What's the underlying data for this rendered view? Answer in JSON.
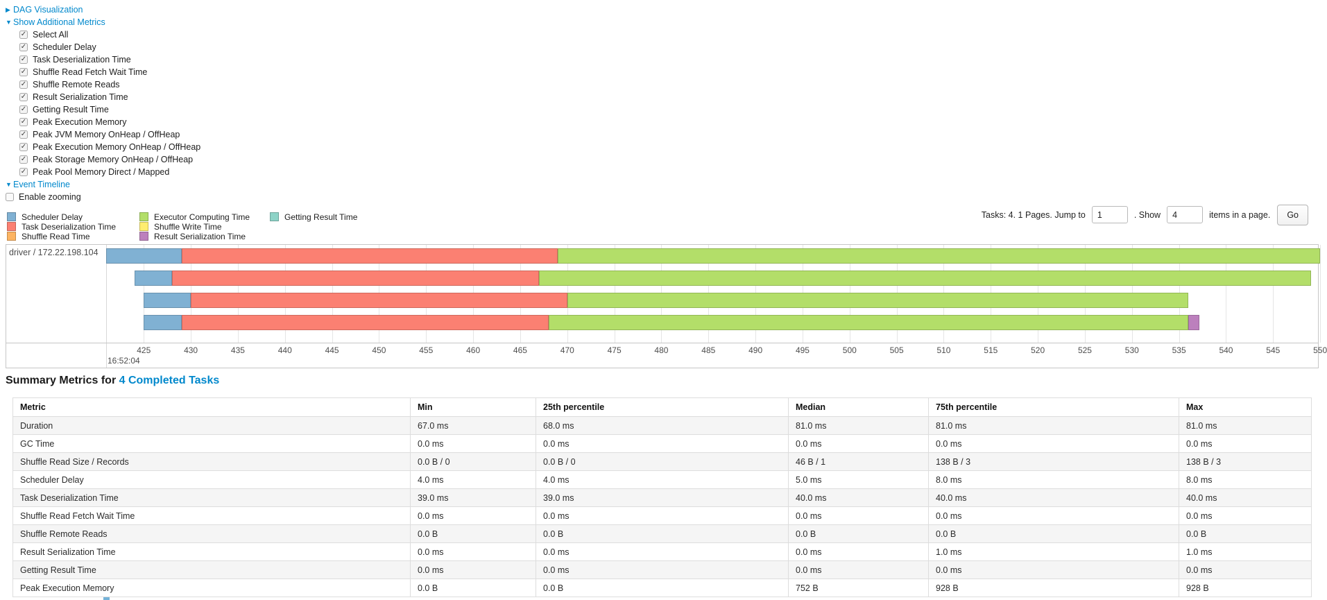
{
  "colors": {
    "link_blue": "#0088cc",
    "scheduler_delay": "#80B1D3",
    "task_deserialization": "#FB8072",
    "shuffle_read": "#FDB462",
    "executor_computing": "#B3DE69",
    "shuffle_write": "#FFED6F",
    "result_serialization": "#BC80BD",
    "getting_result": "#8DD3C7"
  },
  "toggles": {
    "dag": {
      "label": "DAG Visualization",
      "state": "collapsed"
    },
    "metrics": {
      "label": "Show Additional Metrics",
      "state": "expanded"
    },
    "checkboxes": [
      {
        "label": "Select All",
        "checked": true
      },
      {
        "label": "Scheduler Delay",
        "checked": true
      },
      {
        "label": "Task Deserialization Time",
        "checked": true
      },
      {
        "label": "Shuffle Read Fetch Wait Time",
        "checked": true
      },
      {
        "label": "Shuffle Remote Reads",
        "checked": true
      },
      {
        "label": "Result Serialization Time",
        "checked": true
      },
      {
        "label": "Getting Result Time",
        "checked": true
      },
      {
        "label": "Peak Execution Memory",
        "checked": true
      },
      {
        "label": "Peak JVM Memory OnHeap / OffHeap",
        "checked": true
      },
      {
        "label": "Peak Execution Memory OnHeap / OffHeap",
        "checked": true
      },
      {
        "label": "Peak Storage Memory OnHeap / OffHeap",
        "checked": true
      },
      {
        "label": "Peak Pool Memory Direct / Mapped",
        "checked": true
      }
    ],
    "event_timeline": {
      "label": "Event Timeline",
      "state": "expanded"
    },
    "enable_zooming": {
      "label": "Enable zooming",
      "checked": false
    }
  },
  "pagination": {
    "tasks_text": "Tasks: 4. 1 Pages. Jump to",
    "jump_value": "1",
    "show_text": ". Show",
    "show_value": "4",
    "items_text": "items in a page.",
    "go_label": "Go"
  },
  "chart_data": {
    "type": "timeline-gantt",
    "group_label": "driver / 172.22.198.104",
    "major_time_label": "16:52:04",
    "axis": {
      "min": 421,
      "max": 549.9,
      "tick_start": 425,
      "tick_end": 550,
      "tick_step": 5,
      "unit": "ms after 16:52:04"
    },
    "legend": [
      {
        "type": "scheduler_delay",
        "label": "Scheduler Delay"
      },
      {
        "type": "task_deserialization",
        "label": "Task Deserialization Time"
      },
      {
        "type": "shuffle_read",
        "label": "Shuffle Read Time"
      },
      {
        "type": "executor_computing",
        "label": "Executor Computing Time"
      },
      {
        "type": "shuffle_write",
        "label": "Shuffle Write Time"
      },
      {
        "type": "result_serialization",
        "label": "Result Serialization Time"
      },
      {
        "type": "getting_result",
        "label": "Getting Result Time"
      }
    ],
    "tasks": [
      {
        "segments": [
          {
            "type": "scheduler_delay",
            "start": 421,
            "end": 429
          },
          {
            "type": "task_deserialization",
            "start": 429,
            "end": 469
          },
          {
            "type": "executor_computing",
            "start": 469,
            "end": 550
          }
        ]
      },
      {
        "segments": [
          {
            "type": "scheduler_delay",
            "start": 424,
            "end": 428
          },
          {
            "type": "task_deserialization",
            "start": 428,
            "end": 467
          },
          {
            "type": "executor_computing",
            "start": 467,
            "end": 549
          }
        ]
      },
      {
        "segments": [
          {
            "type": "scheduler_delay",
            "start": 425,
            "end": 430
          },
          {
            "type": "task_deserialization",
            "start": 430,
            "end": 470
          },
          {
            "type": "executor_computing",
            "start": 470,
            "end": 536
          }
        ]
      },
      {
        "segments": [
          {
            "type": "scheduler_delay",
            "start": 425,
            "end": 429
          },
          {
            "type": "task_deserialization",
            "start": 429,
            "end": 468
          },
          {
            "type": "executor_computing",
            "start": 468,
            "end": 536
          },
          {
            "type": "result_serialization",
            "start": 536,
            "end": 537.2
          }
        ]
      }
    ]
  },
  "summary": {
    "title_prefix": "Summary Metrics for ",
    "title_link": "4 Completed Tasks",
    "table": {
      "headers": [
        "Metric",
        "Min",
        "25th percentile",
        "Median",
        "75th percentile",
        "Max"
      ],
      "rows": [
        [
          "Duration",
          "67.0 ms",
          "68.0 ms",
          "81.0 ms",
          "81.0 ms",
          "81.0 ms"
        ],
        [
          "GC Time",
          "0.0 ms",
          "0.0 ms",
          "0.0 ms",
          "0.0 ms",
          "0.0 ms"
        ],
        [
          "Shuffle Read Size / Records",
          "0.0 B / 0",
          "0.0 B / 0",
          "46 B / 1",
          "138 B / 3",
          "138 B / 3"
        ],
        [
          "Scheduler Delay",
          "4.0 ms",
          "4.0 ms",
          "5.0 ms",
          "8.0 ms",
          "8.0 ms"
        ],
        [
          "Task Deserialization Time",
          "39.0 ms",
          "39.0 ms",
          "40.0 ms",
          "40.0 ms",
          "40.0 ms"
        ],
        [
          "Shuffle Read Fetch Wait Time",
          "0.0 ms",
          "0.0 ms",
          "0.0 ms",
          "0.0 ms",
          "0.0 ms"
        ],
        [
          "Shuffle Remote Reads",
          "0.0 B",
          "0.0 B",
          "0.0 B",
          "0.0 B",
          "0.0 B"
        ],
        [
          "Result Serialization Time",
          "0.0 ms",
          "0.0 ms",
          "0.0 ms",
          "1.0 ms",
          "1.0 ms"
        ],
        [
          "Getting Result Time",
          "0.0 ms",
          "0.0 ms",
          "0.0 ms",
          "0.0 ms",
          "0.0 ms"
        ],
        [
          "Peak Execution Memory",
          "0.0 B",
          "0.0 B",
          "752 B",
          "928 B",
          "928 B"
        ]
      ]
    }
  }
}
